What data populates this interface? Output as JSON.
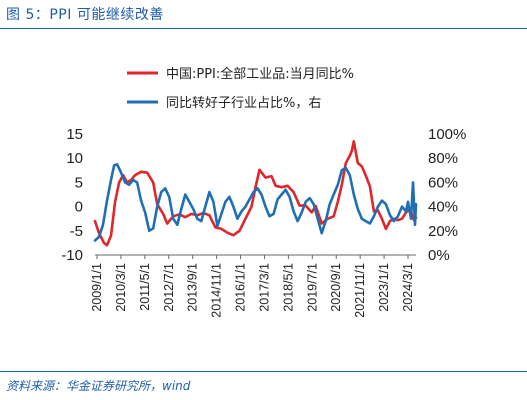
{
  "figure": {
    "title": "图 5：PPI 可能继续改善",
    "source": "资料来源：华金证券研究所，wind"
  },
  "chart_data": {
    "type": "line",
    "title": "",
    "xlabel": "",
    "ylabel": "",
    "y_left": {
      "lim": [
        -10,
        15
      ],
      "ticks": [
        "15",
        "10",
        "5",
        "0",
        "-5",
        "-10"
      ]
    },
    "y_right": {
      "lim": [
        0,
        100
      ],
      "ticks": [
        "100%",
        "80%",
        "60%",
        "40%",
        "20%",
        "0%"
      ]
    },
    "x_range": [
      2009.0,
      2025.0
    ],
    "x_ticks": [
      "2009/1/1",
      "2010/3/1",
      "2011/5/1",
      "2012/7/1",
      "2013/9/1",
      "2014/11/1",
      "2016/1/1",
      "2017/3/1",
      "2018/5/1",
      "2019/7/1",
      "2020/9/1",
      "2021/11/1",
      "2023/1/1",
      "2024/3/1"
    ],
    "legend_placement": "top",
    "series": [
      {
        "name": "中国:PPI:全部工业品:当月同比%",
        "axis": "left",
        "color": "#e0262b",
        "x": [
          2009.0,
          2009.2,
          2009.45,
          2009.6,
          2009.8,
          2010.0,
          2010.2,
          2010.4,
          2010.6,
          2010.8,
          2011.0,
          2011.3,
          2011.6,
          2011.9,
          2012.1,
          2012.4,
          2012.6,
          2012.9,
          2013.2,
          2013.5,
          2013.8,
          2014.1,
          2014.4,
          2014.7,
          2015.0,
          2015.3,
          2015.6,
          2015.9,
          2016.2,
          2016.5,
          2016.8,
          2017.0,
          2017.2,
          2017.5,
          2017.8,
          2018.0,
          2018.3,
          2018.6,
          2018.9,
          2019.2,
          2019.5,
          2019.8,
          2020.0,
          2020.3,
          2020.6,
          2020.9,
          2021.1,
          2021.3,
          2021.5,
          2021.7,
          2021.8,
          2021.9,
          2022.1,
          2022.3,
          2022.5,
          2022.7,
          2022.9,
          2023.1,
          2023.3,
          2023.5,
          2023.7,
          2023.9,
          2024.1,
          2024.3,
          2024.5,
          2024.7,
          2024.9,
          2025.0
        ],
        "values": [
          -3.0,
          -5.5,
          -7.5,
          -8.0,
          -6.0,
          1.0,
          5.0,
          6.5,
          5.0,
          5.5,
          6.5,
          7.2,
          7.0,
          5.0,
          0.5,
          -1.5,
          -3.5,
          -2.0,
          -1.6,
          -2.2,
          -1.5,
          -1.8,
          -1.3,
          -1.8,
          -4.3,
          -4.6,
          -5.4,
          -5.9,
          -5.0,
          -2.5,
          0.0,
          4.0,
          7.6,
          6.0,
          6.3,
          4.3,
          4.0,
          4.3,
          3.0,
          0.2,
          0.2,
          -1.2,
          0.1,
          -3.5,
          -2.5,
          -2.0,
          1.0,
          4.5,
          9.0,
          10.5,
          11.5,
          13.5,
          9.0,
          8.3,
          6.4,
          4.2,
          -1.0,
          -0.8,
          -2.5,
          -4.6,
          -3.0,
          -2.5,
          -2.8,
          -2.5,
          -1.2,
          -0.5,
          -2.8,
          -2.3
        ]
      },
      {
        "name": "同比转好子行业占比%，右",
        "axis": "right",
        "color": "#1f6fb5",
        "x": [
          2009.0,
          2009.2,
          2009.4,
          2009.6,
          2009.8,
          2009.95,
          2010.1,
          2010.3,
          2010.5,
          2010.7,
          2010.9,
          2011.1,
          2011.3,
          2011.5,
          2011.7,
          2011.9,
          2012.1,
          2012.3,
          2012.5,
          2012.7,
          2012.9,
          2013.1,
          2013.3,
          2013.5,
          2013.7,
          2013.9,
          2014.1,
          2014.3,
          2014.5,
          2014.7,
          2014.9,
          2015.1,
          2015.3,
          2015.5,
          2015.7,
          2015.9,
          2016.1,
          2016.3,
          2016.5,
          2016.7,
          2016.9,
          2017.1,
          2017.3,
          2017.5,
          2017.7,
          2017.9,
          2018.1,
          2018.3,
          2018.5,
          2018.7,
          2018.9,
          2019.1,
          2019.3,
          2019.5,
          2019.7,
          2019.9,
          2020.1,
          2020.3,
          2020.5,
          2020.7,
          2020.9,
          2021.1,
          2021.3,
          2021.5,
          2021.7,
          2021.9,
          2022.1,
          2022.3,
          2022.5,
          2022.7,
          2022.9,
          2023.1,
          2023.3,
          2023.5,
          2023.7,
          2023.9,
          2024.1,
          2024.3,
          2024.5,
          2024.6,
          2024.75,
          2024.85,
          2024.95,
          2025.0
        ],
        "values": [
          12.0,
          15.0,
          25.0,
          45.0,
          62.0,
          74.0,
          75.0,
          68.0,
          60.0,
          58.0,
          62.0,
          60.0,
          45.0,
          35.0,
          20.0,
          22.0,
          40.0,
          52.0,
          55.0,
          48.0,
          30.0,
          25.0,
          38.0,
          50.0,
          44.0,
          38.0,
          30.0,
          28.0,
          40.0,
          52.0,
          44.0,
          24.0,
          34.0,
          44.0,
          48.0,
          40.0,
          30.0,
          36.0,
          40.0,
          46.0,
          52.0,
          55.0,
          50.0,
          40.0,
          32.0,
          34.0,
          46.0,
          50.0,
          54.0,
          48.0,
          36.0,
          28.0,
          35.0,
          44.0,
          47.0,
          42.0,
          30.0,
          18.0,
          28.0,
          42.0,
          50.0,
          58.0,
          70.0,
          72.0,
          66.0,
          50.0,
          38.0,
          30.0,
          28.0,
          26.0,
          32.0,
          40.0,
          45.0,
          42.0,
          33.0,
          28.0,
          32.0,
          40.0,
          36.0,
          44.0,
          30.0,
          60.0,
          25.0,
          42.0
        ]
      }
    ]
  }
}
